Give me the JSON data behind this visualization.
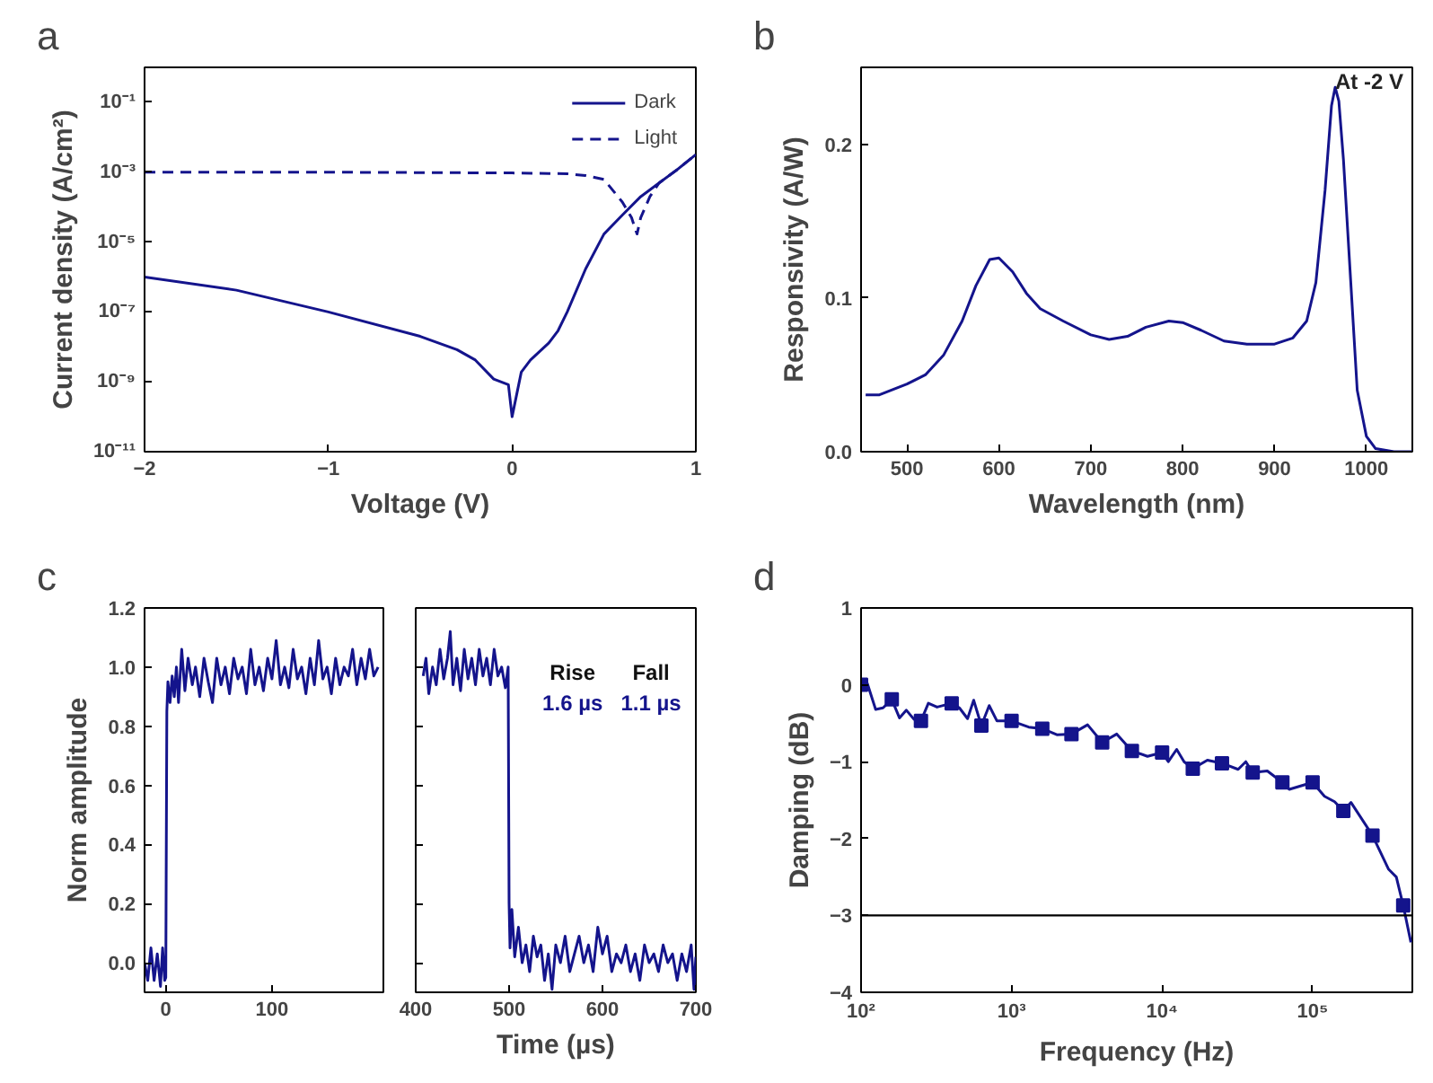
{
  "chart_data": [
    {
      "type": "line",
      "title": "a",
      "xlabel": "Voltage (V)",
      "ylabel": "Current density (A/cm²)",
      "log": "y",
      "legend": "top right",
      "grid": false,
      "xlim": [
        -2,
        1
      ],
      "xticks": [
        -2,
        -1,
        0,
        1
      ],
      "ylim": [
        1e-11,
        1
      ],
      "yticks": [
        {
          "value": 1e-11,
          "label": "10⁻¹¹"
        },
        {
          "value": 1e-09,
          "label": "10⁻⁹"
        },
        {
          "value": 1e-07,
          "label": "10⁻⁷"
        },
        {
          "value": 1e-05,
          "label": "10⁻⁵"
        },
        {
          "value": 0.001,
          "label": "10⁻³"
        },
        {
          "value": 0.1,
          "label": "10⁻¹"
        }
      ],
      "series": [
        {
          "name": "Dark",
          "color": "#14148c",
          "line_style": "solid",
          "x": [
            -2,
            -1.5,
            -1,
            -0.5,
            -0.3,
            -0.2,
            -0.1,
            -0.02,
            0,
            0.05,
            0.1,
            0.2,
            0.25,
            0.3,
            0.4,
            0.5,
            0.6,
            0.7,
            0.8,
            0.9,
            1.0
          ],
          "values": [
            1e-06,
            4.2e-07,
            1e-07,
            2e-08,
            8.3e-09,
            4.2e-09,
            1.2e-09,
            8.3e-10,
            1e-10,
            1.9e-09,
            4.2e-09,
            1.3e-08,
            2.9e-08,
            1e-07,
            1.7e-06,
            1.7e-05,
            5.9e-05,
            0.0002,
            0.00049,
            0.0012,
            0.0032
          ]
        },
        {
          "name": "Light",
          "color": "#14148c",
          "line_style": "dashed",
          "x": [
            -2,
            -1,
            0,
            0.2,
            0.3,
            0.4,
            0.5,
            0.6,
            0.65,
            0.68,
            0.7,
            0.75,
            0.8,
            0.9,
            1.0
          ],
          "values": [
            0.001,
            0.001,
            0.00095,
            0.00092,
            0.0009,
            0.0008,
            0.00062,
            0.00014,
            5e-05,
            1.7e-05,
            5e-05,
            0.0002,
            0.00049,
            0.0012,
            0.0032
          ]
        }
      ]
    },
    {
      "type": "line",
      "title": "b",
      "xlabel": "Wavelength (nm)",
      "ylabel": "Responsivity (A/W)",
      "annotations": [
        "At -2 V"
      ],
      "grid": false,
      "xlim": [
        450,
        1050
      ],
      "xticks": [
        500,
        600,
        700,
        800,
        900,
        1000
      ],
      "ylim": [
        0,
        0.25
      ],
      "yticks": [
        {
          "value": 0,
          "label": "0.0"
        },
        0.1,
        0.2
      ],
      "series": [
        {
          "color": "#14148c",
          "x": [
            455,
            470,
            500,
            520,
            540,
            560,
            575,
            590,
            600,
            615,
            630,
            645,
            670,
            700,
            720,
            740,
            760,
            785,
            800,
            820,
            845,
            870,
            900,
            920,
            935,
            945,
            955,
            962,
            966,
            970,
            975,
            982,
            990,
            1000,
            1010,
            1030,
            1050
          ],
          "values": [
            0.037,
            0.037,
            0.044,
            0.05,
            0.063,
            0.085,
            0.108,
            0.125,
            0.126,
            0.117,
            0.103,
            0.093,
            0.085,
            0.076,
            0.073,
            0.075,
            0.081,
            0.085,
            0.084,
            0.079,
            0.072,
            0.07,
            0.07,
            0.074,
            0.085,
            0.11,
            0.17,
            0.225,
            0.237,
            0.228,
            0.19,
            0.12,
            0.04,
            0.01,
            0.002,
            0,
            0
          ]
        }
      ]
    },
    {
      "type": "line",
      "title": "c",
      "ylabel": "Norm amplitude",
      "grid": false,
      "xlim": [
        -20,
        205
      ],
      "xticks": [
        0,
        100
      ],
      "ylim": [
        -0.1,
        1.2
      ],
      "yticks": [
        {
          "value": 0,
          "label": "0.0"
        },
        0.2,
        0.4,
        0.6,
        0.8,
        {
          "value": 1,
          "label": "1.0"
        },
        1.2
      ],
      "series": [
        {
          "color": "#14148c",
          "x": [
            -20,
            -17,
            -14,
            -11,
            -8,
            -5,
            -3,
            -1,
            0,
            1,
            2,
            4,
            6,
            8,
            10,
            12,
            15,
            18,
            21,
            25,
            28,
            32,
            36,
            40,
            44,
            48,
            52,
            56,
            60,
            64,
            68,
            72,
            76,
            80,
            84,
            88,
            92,
            96,
            100,
            104,
            108,
            112,
            116,
            120,
            124,
            128,
            132,
            136,
            140,
            144,
            148,
            152,
            156,
            160,
            164,
            168,
            172,
            176,
            180,
            184,
            188,
            192,
            196,
            200
          ],
          "values": [
            0.0,
            -0.06,
            0.05,
            -0.06,
            0.03,
            -0.08,
            0.05,
            -0.06,
            -0.05,
            0.85,
            0.95,
            0.88,
            0.97,
            0.9,
            1.0,
            0.88,
            1.06,
            0.92,
            1.03,
            0.94,
            1.0,
            0.9,
            1.03,
            0.95,
            0.88,
            1.03,
            0.94,
            1.0,
            0.91,
            1.03,
            0.96,
            1.0,
            0.91,
            1.06,
            0.94,
            1.0,
            0.92,
            1.03,
            0.96,
            1.09,
            0.94,
            1.0,
            0.93,
            1.06,
            0.96,
            1.0,
            0.91,
            1.03,
            0.94,
            1.09,
            0.96,
            1.0,
            0.91,
            1.03,
            0.94,
            1.0,
            0.97,
            1.06,
            0.94,
            1.03,
            0.96,
            1.06,
            0.97,
            1.0
          ]
        }
      ]
    },
    {
      "type": "line",
      "xlabel": "Time (µs)",
      "tick_labels": "x",
      "annotations": [
        "Rise",
        "Fall",
        "1.6 µs",
        "1.1 µs"
      ],
      "grid": false,
      "xlim": [
        400,
        700
      ],
      "xticks": [
        400,
        500,
        600,
        700
      ],
      "ylim": [
        -0.1,
        1.2
      ],
      "yticks": [
        0,
        0.2,
        0.4,
        0.6,
        0.8,
        1,
        1.2
      ],
      "series": [
        {
          "color": "#14148c",
          "x": [
            408,
            411,
            414,
            418,
            422,
            426,
            430,
            434,
            437,
            440,
            444,
            448,
            452,
            456,
            460,
            464,
            468,
            472,
            476,
            480,
            484,
            488,
            492,
            496,
            499,
            500,
            501,
            503,
            506,
            510,
            514,
            518,
            522,
            526,
            530,
            534,
            538,
            542,
            546,
            550,
            555,
            560,
            565,
            570,
            575,
            580,
            585,
            590,
            595,
            600,
            605,
            610,
            615,
            620,
            625,
            630,
            635,
            640,
            645,
            650,
            655,
            660,
            665,
            670,
            675,
            680,
            685,
            690,
            695,
            698,
            700
          ],
          "values": [
            0.97,
            1.03,
            0.91,
            1.0,
            0.94,
            1.06,
            0.96,
            1.03,
            1.12,
            0.94,
            1.03,
            0.92,
            1.06,
            0.96,
            1.03,
            0.94,
            1.06,
            0.97,
            1.03,
            0.94,
            1.06,
            0.97,
            1.0,
            0.93,
            1.0,
            0.2,
            0.05,
            0.18,
            0.02,
            0.12,
            0.0,
            0.06,
            -0.03,
            0.09,
            0.02,
            0.06,
            -0.06,
            0.03,
            -0.09,
            0.06,
            0.0,
            0.09,
            -0.03,
            0.03,
            0.09,
            0.0,
            0.06,
            -0.03,
            0.12,
            0.03,
            0.09,
            -0.03,
            0.03,
            0.0,
            0.06,
            -0.03,
            0.03,
            -0.06,
            0.06,
            0.0,
            0.03,
            -0.03,
            0.06,
            0.0,
            0.03,
            -0.06,
            0.03,
            -0.03,
            0.06,
            -0.09,
            0.02
          ]
        }
      ]
    },
    {
      "type": "line",
      "title": "d",
      "xlabel": "Frequency (Hz)",
      "ylabel": "Damping (dB)",
      "log": "x",
      "grid": false,
      "xlim": [
        100,
        460000
      ],
      "xticks": [
        {
          "value": 100,
          "label": "10²"
        },
        {
          "value": 1000,
          "label": "10³"
        },
        {
          "value": 10000,
          "label": "10⁴"
        },
        {
          "value": 100000,
          "label": "10⁵"
        }
      ],
      "ylim": [
        -4,
        1
      ],
      "yticks": [
        -4,
        -3,
        -2,
        -1,
        0,
        1
      ],
      "ref_lines": [
        {
          "axis": "y",
          "value": -3,
          "color": "#000000"
        }
      ],
      "series": [
        {
          "type": "line",
          "color": "#14148c",
          "x": [
            100,
            110,
            125,
            140,
            160,
            180,
            200,
            225,
            250,
            280,
            320,
            400,
            450,
            510,
            560,
            630,
            710,
            800,
            1000,
            1300,
            1600,
            2000,
            2500,
            3200,
            4000,
            5000,
            6300,
            8000,
            10000,
            11000,
            12500,
            14000,
            16000,
            20000,
            25000,
            32000,
            36000,
            40000,
            50000,
            63000,
            70000,
            100000,
            120000,
            140000,
            160000,
            180000,
            250000,
            320000,
            360000,
            400000,
            450000
          ],
          "values": [
            0,
            0.02,
            -0.32,
            -0.3,
            -0.19,
            -0.43,
            -0.33,
            -0.45,
            -0.47,
            -0.24,
            -0.29,
            -0.24,
            -0.3,
            -0.44,
            -0.2,
            -0.53,
            -0.27,
            -0.47,
            -0.47,
            -0.55,
            -0.57,
            -0.65,
            -0.64,
            -0.52,
            -0.75,
            -0.64,
            -0.86,
            -0.93,
            -0.88,
            -1.0,
            -0.84,
            -1.0,
            -1.09,
            -0.98,
            -1.02,
            -1.1,
            -1.0,
            -1.14,
            -1.12,
            -1.27,
            -1.36,
            -1.27,
            -1.45,
            -1.52,
            -1.64,
            -1.53,
            -1.96,
            -2.4,
            -2.5,
            -2.87,
            -3.35
          ]
        },
        {
          "type": "scatter",
          "marker": "square",
          "color": "#14148c",
          "x": [
            100,
            160,
            250,
            400,
            630,
            1000,
            1600,
            2500,
            4000,
            6300,
            10000,
            16000,
            25000,
            40000,
            63000,
            100000,
            160000,
            250000,
            400000
          ],
          "values": [
            0,
            -0.19,
            -0.47,
            -0.24,
            -0.53,
            -0.47,
            -0.57,
            -0.64,
            -0.75,
            -0.86,
            -0.88,
            -1.09,
            -1.02,
            -1.14,
            -1.27,
            -1.27,
            -1.64,
            -1.96,
            -2.87
          ]
        }
      ]
    }
  ]
}
